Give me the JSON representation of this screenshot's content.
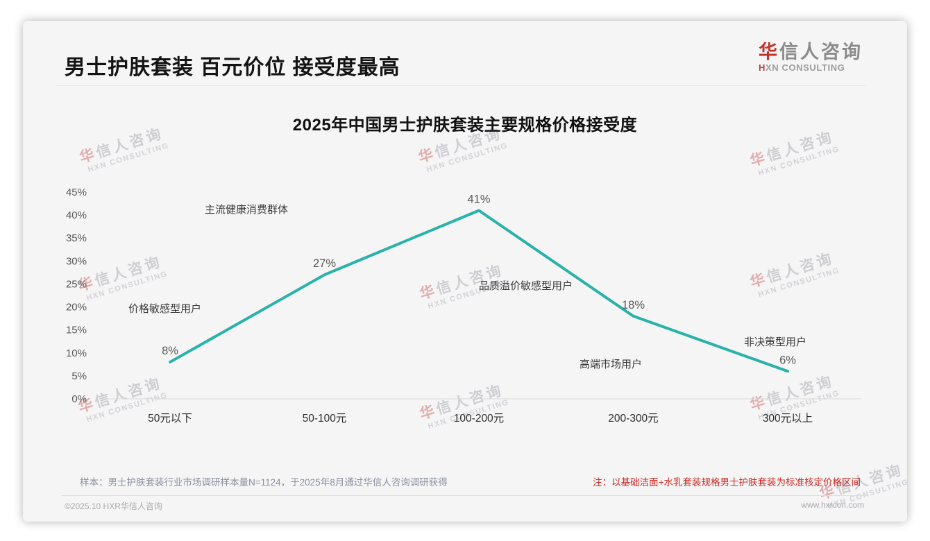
{
  "header": {
    "title": "男士护肤套装 百元价位 接受度最高"
  },
  "logo": {
    "name_first": "华",
    "name_rest": "信人咨询",
    "subtitle_first": "H",
    "subtitle_rest": "XN CONSULTING"
  },
  "watermark": {
    "line1": "华信人咨询",
    "line2": "HXN CONSULTING"
  },
  "chart_data": {
    "type": "line",
    "title": "2025年中国男士护肤套装主要规格价格接受度",
    "categories": [
      "50元以下",
      "50-100元",
      "100-200元",
      "200-300元",
      "300元以上"
    ],
    "values": [
      8,
      27,
      41,
      18,
      6
    ],
    "labels": [
      "8%",
      "27%",
      "41%",
      "18%",
      "6%"
    ],
    "annotations": [
      "主流健康消费群体",
      "价格敏感型用户",
      "品质溢价敏感型用户",
      "高端市场用户",
      "非决策型用户"
    ],
    "ylim": [
      0,
      45
    ],
    "ytick_step": 5,
    "ytick_labels": [
      "0%",
      "5%",
      "10%",
      "15%",
      "20%",
      "25%",
      "30%",
      "35%",
      "40%",
      "45%"
    ],
    "line_color": "#29b2a9",
    "grid": false,
    "legend": "none"
  },
  "notes": {
    "sample": "样本：男士护肤套装行业市场调研样本量N=1124，于2025年8月通过华信人咨询调研获得",
    "price_note": "注：以基础洁面+水乳套装规格男士护肤套装为标准核定价格区间"
  },
  "footer": {
    "copyright": "©2025.10 HXR华信人咨询",
    "website": "www.hxrcon.com"
  }
}
